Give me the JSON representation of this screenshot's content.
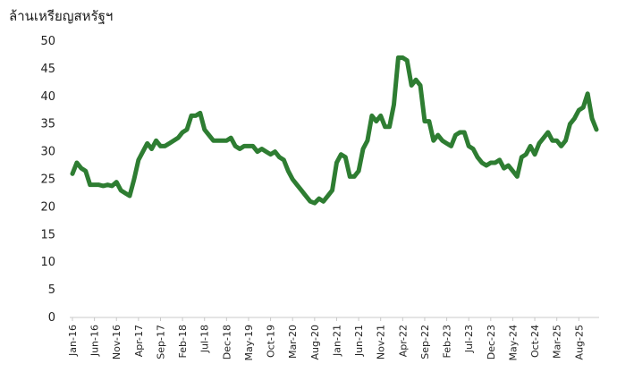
{
  "chart_data": {
    "type": "line",
    "title": "",
    "ylabel": "ล้านเหรียญสหรัฐฯ",
    "xlabel": "",
    "ylim": [
      0,
      50
    ],
    "yticks": [
      "0",
      "5",
      "10",
      "15",
      "20",
      "25",
      "30",
      "35",
      "40",
      "45",
      "50"
    ],
    "grid": false,
    "legend": "none",
    "line_color": "#2e7d32",
    "x_tick_labels": [
      "Jan-16",
      "Jun-16",
      "Nov-16",
      "Apr-17",
      "Sep-17",
      "Feb-18",
      "Jul-18",
      "Dec-18",
      "May-19",
      "Oct-19",
      "Mar-20",
      "Aug-20",
      "Jan-21",
      "Jun-21",
      "Nov-21",
      "Apr-22",
      "Sep-22",
      "Feb-23",
      "Jul-23",
      "Dec-23",
      "May-24",
      "Oct-24",
      "Mar-25",
      "Aug-25"
    ],
    "x_tick_index": [
      0,
      5,
      10,
      15,
      20,
      25,
      30,
      35,
      40,
      45,
      50,
      55,
      60,
      65,
      70,
      75,
      80,
      85,
      90,
      95,
      100,
      105,
      110,
      115
    ],
    "series": [
      {
        "values": [
          26,
          28,
          27,
          26.5,
          24,
          24,
          24,
          23.8,
          24,
          23.8,
          24.5,
          23,
          22.5,
          22,
          25,
          28.5,
          30,
          31.5,
          30.5,
          32,
          31,
          31,
          31.5,
          32,
          32.5,
          33.5,
          34,
          36.5,
          36.5,
          37,
          34,
          33,
          32,
          32,
          32,
          32,
          32.5,
          31,
          30.5,
          31,
          31,
          31,
          30,
          30.5,
          30,
          29.5,
          30,
          29,
          28.5,
          26.5,
          25,
          24,
          23,
          22,
          21,
          20.7,
          21.5,
          21,
          22,
          23,
          28,
          29.5,
          29,
          25.5,
          25.5,
          26.5,
          30.5,
          32,
          36.5,
          35.5,
          36.5,
          34.5,
          34.5,
          38.5,
          47,
          47,
          46.5,
          42,
          43,
          42,
          35.5,
          35.5,
          32,
          33,
          32,
          31.5,
          31,
          33,
          33.5,
          33.5,
          31,
          30.5,
          29,
          28,
          27.5,
          28,
          28,
          28.5,
          27,
          27.5,
          26.5,
          25.5,
          29,
          29.5,
          31,
          29.5,
          31.5,
          32.5,
          33.5,
          32,
          32,
          31,
          32,
          35,
          36,
          37.5,
          38,
          40.5,
          36,
          34
        ]
      }
    ]
  }
}
